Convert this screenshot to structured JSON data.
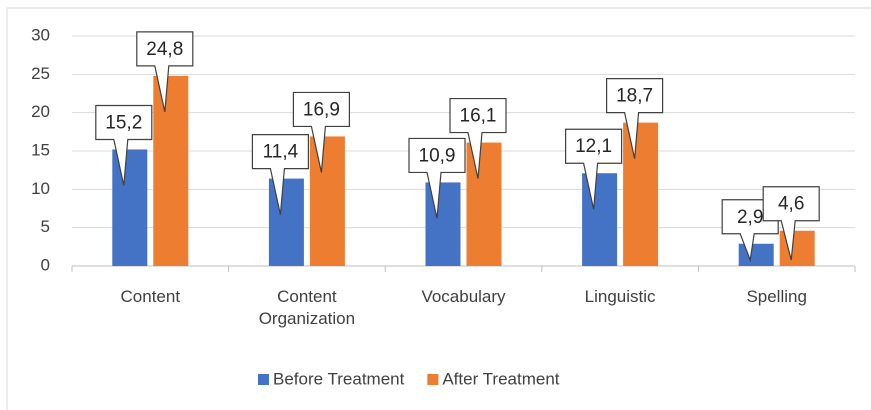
{
  "chart_data": {
    "type": "bar",
    "categories": [
      "Content",
      "Content Organization",
      "Vocabulary",
      "Linguistic",
      "Spelling"
    ],
    "series": [
      {
        "name": "Before Treatment",
        "color": "#4472c4",
        "values": [
          15.2,
          11.4,
          10.9,
          12.1,
          2.9
        ],
        "value_labels": [
          "15,2",
          "11,4",
          "10,9",
          "12,1",
          "2,9"
        ]
      },
      {
        "name": "After Treatment",
        "color": "#ed7d31",
        "values": [
          24.8,
          16.9,
          16.1,
          18.7,
          4.6
        ],
        "value_labels": [
          "24,8",
          "16,9",
          "16,1",
          "18,7",
          "4,6"
        ]
      }
    ],
    "ylim": [
      0,
      30
    ],
    "yticks": [
      0,
      5,
      10,
      15,
      20,
      25,
      30
    ],
    "grid": true,
    "legend": "bottom"
  }
}
